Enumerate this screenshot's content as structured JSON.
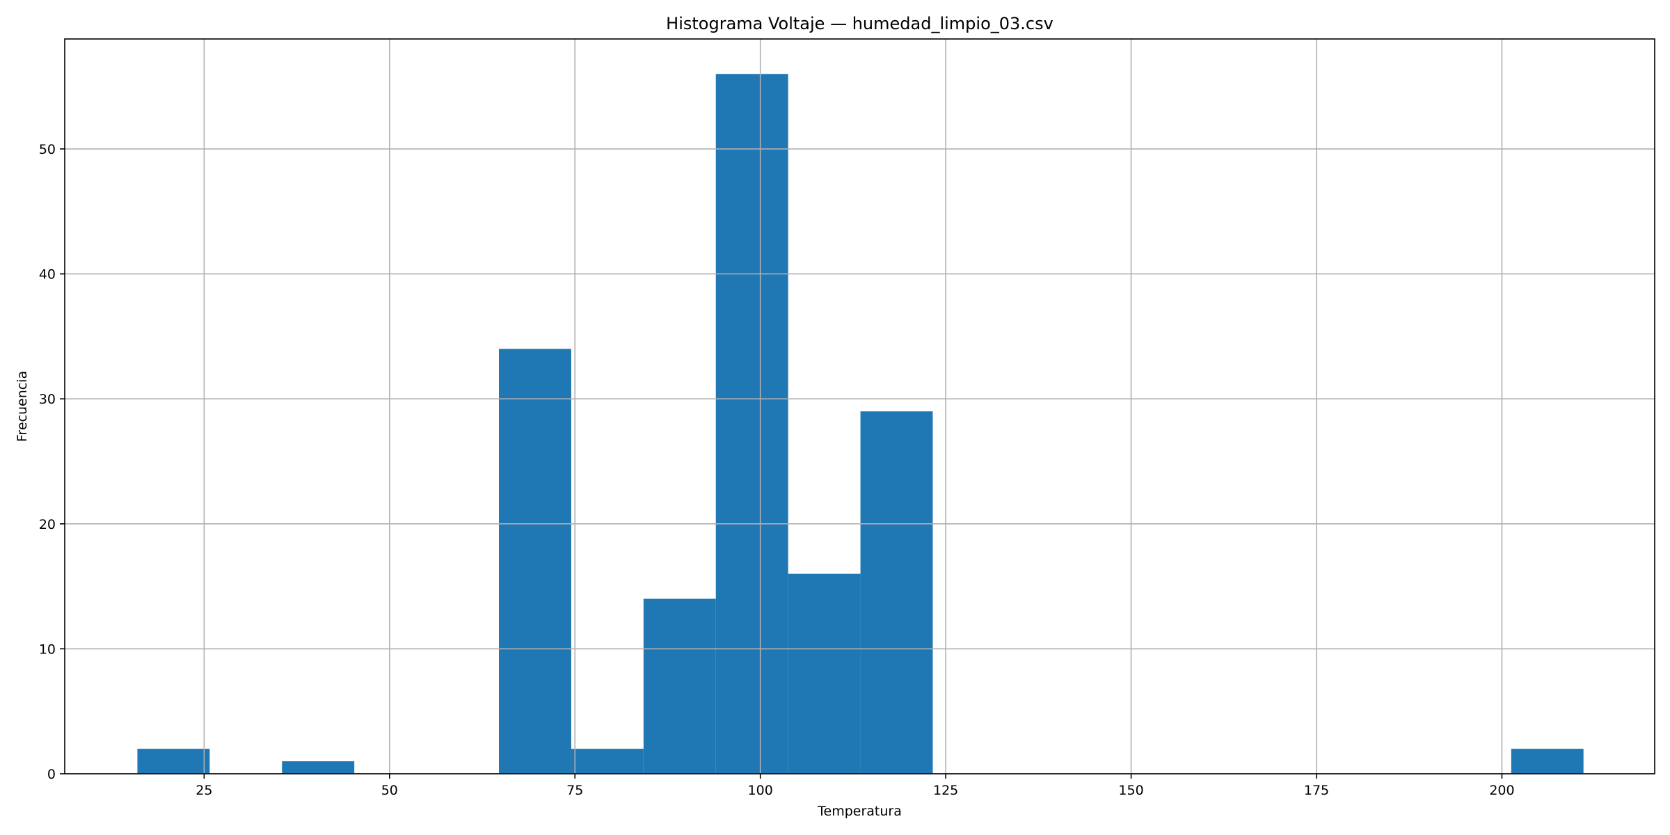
{
  "chart_data": {
    "type": "bar",
    "title": "Histograma Voltaje — humedad_limpio_03.csv",
    "xlabel": "Temperatura",
    "ylabel": "Frecuencia",
    "xlim": [
      6.2,
      220.6
    ],
    "ylim": [
      0,
      58.8
    ],
    "grid": true,
    "bar_color": "#1f77b4",
    "grid_color": "#b0b0b0",
    "x_ticks": [
      25,
      50,
      75,
      100,
      125,
      150,
      175,
      200
    ],
    "y_ticks": [
      0,
      10,
      20,
      30,
      40,
      50
    ],
    "bins": [
      {
        "start": 16.0,
        "end": 25.75,
        "count": 2
      },
      {
        "start": 25.75,
        "end": 35.5,
        "count": 0
      },
      {
        "start": 35.5,
        "end": 45.25,
        "count": 1
      },
      {
        "start": 45.25,
        "end": 55.0,
        "count": 0
      },
      {
        "start": 55.0,
        "end": 64.75,
        "count": 0
      },
      {
        "start": 64.75,
        "end": 74.5,
        "count": 34
      },
      {
        "start": 74.5,
        "end": 84.25,
        "count": 2
      },
      {
        "start": 84.25,
        "end": 94.0,
        "count": 14
      },
      {
        "start": 94.0,
        "end": 103.75,
        "count": 56
      },
      {
        "start": 103.75,
        "end": 113.5,
        "count": 16
      },
      {
        "start": 113.5,
        "end": 123.25,
        "count": 29
      },
      {
        "start": 123.25,
        "end": 133.0,
        "count": 0
      },
      {
        "start": 133.0,
        "end": 142.75,
        "count": 0
      },
      {
        "start": 142.75,
        "end": 152.5,
        "count": 0
      },
      {
        "start": 152.5,
        "end": 162.25,
        "count": 0
      },
      {
        "start": 162.25,
        "end": 172.0,
        "count": 0
      },
      {
        "start": 172.0,
        "end": 181.75,
        "count": 0
      },
      {
        "start": 181.75,
        "end": 191.5,
        "count": 0
      },
      {
        "start": 191.5,
        "end": 201.25,
        "count": 0
      },
      {
        "start": 201.25,
        "end": 211.0,
        "count": 2
      }
    ]
  }
}
